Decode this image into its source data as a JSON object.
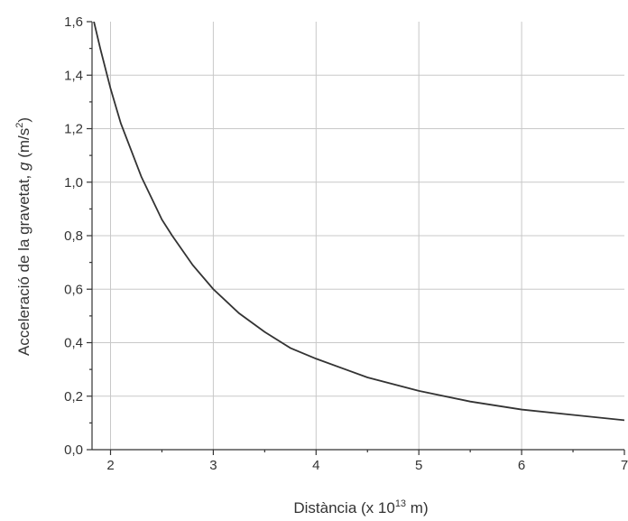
{
  "chart_data": {
    "type": "line",
    "xlabel_main": "Distància (x 10",
    "xlabel_exp": "13",
    "xlabel_tail": " m)",
    "ylabel_main": "Acceleració de la gravetat, ",
    "ylabel_var": "g",
    "ylabel_unit": " (m/s",
    "ylabel_exp": "2",
    "ylabel_tail": ")",
    "xlim": [
      1.82,
      7
    ],
    "ylim": [
      0,
      1.6
    ],
    "x_ticks": [
      "2",
      "3",
      "4",
      "5",
      "6",
      "7"
    ],
    "y_ticks": [
      "0,0",
      "0,2",
      "0,4",
      "0,6",
      "0,8",
      "1,0",
      "1,2",
      "1,4",
      "1,6"
    ],
    "grid": true,
    "series": [
      {
        "x": [
          1.82,
          1.9,
          2.0,
          2.1,
          2.2,
          2.3,
          2.4,
          2.5,
          2.6,
          2.8,
          3.0,
          3.25,
          3.5,
          3.75,
          4.0,
          4.5,
          5.0,
          5.5,
          6.0,
          6.5,
          7.0
        ],
        "y": [
          1.63,
          1.5,
          1.35,
          1.22,
          1.12,
          1.02,
          0.94,
          0.86,
          0.8,
          0.69,
          0.6,
          0.51,
          0.44,
          0.38,
          0.34,
          0.27,
          0.22,
          0.18,
          0.15,
          0.13,
          0.11
        ]
      }
    ],
    "colors": {
      "curve": "#333333",
      "grid": "#c8c8c8",
      "axis": "#333333"
    }
  }
}
